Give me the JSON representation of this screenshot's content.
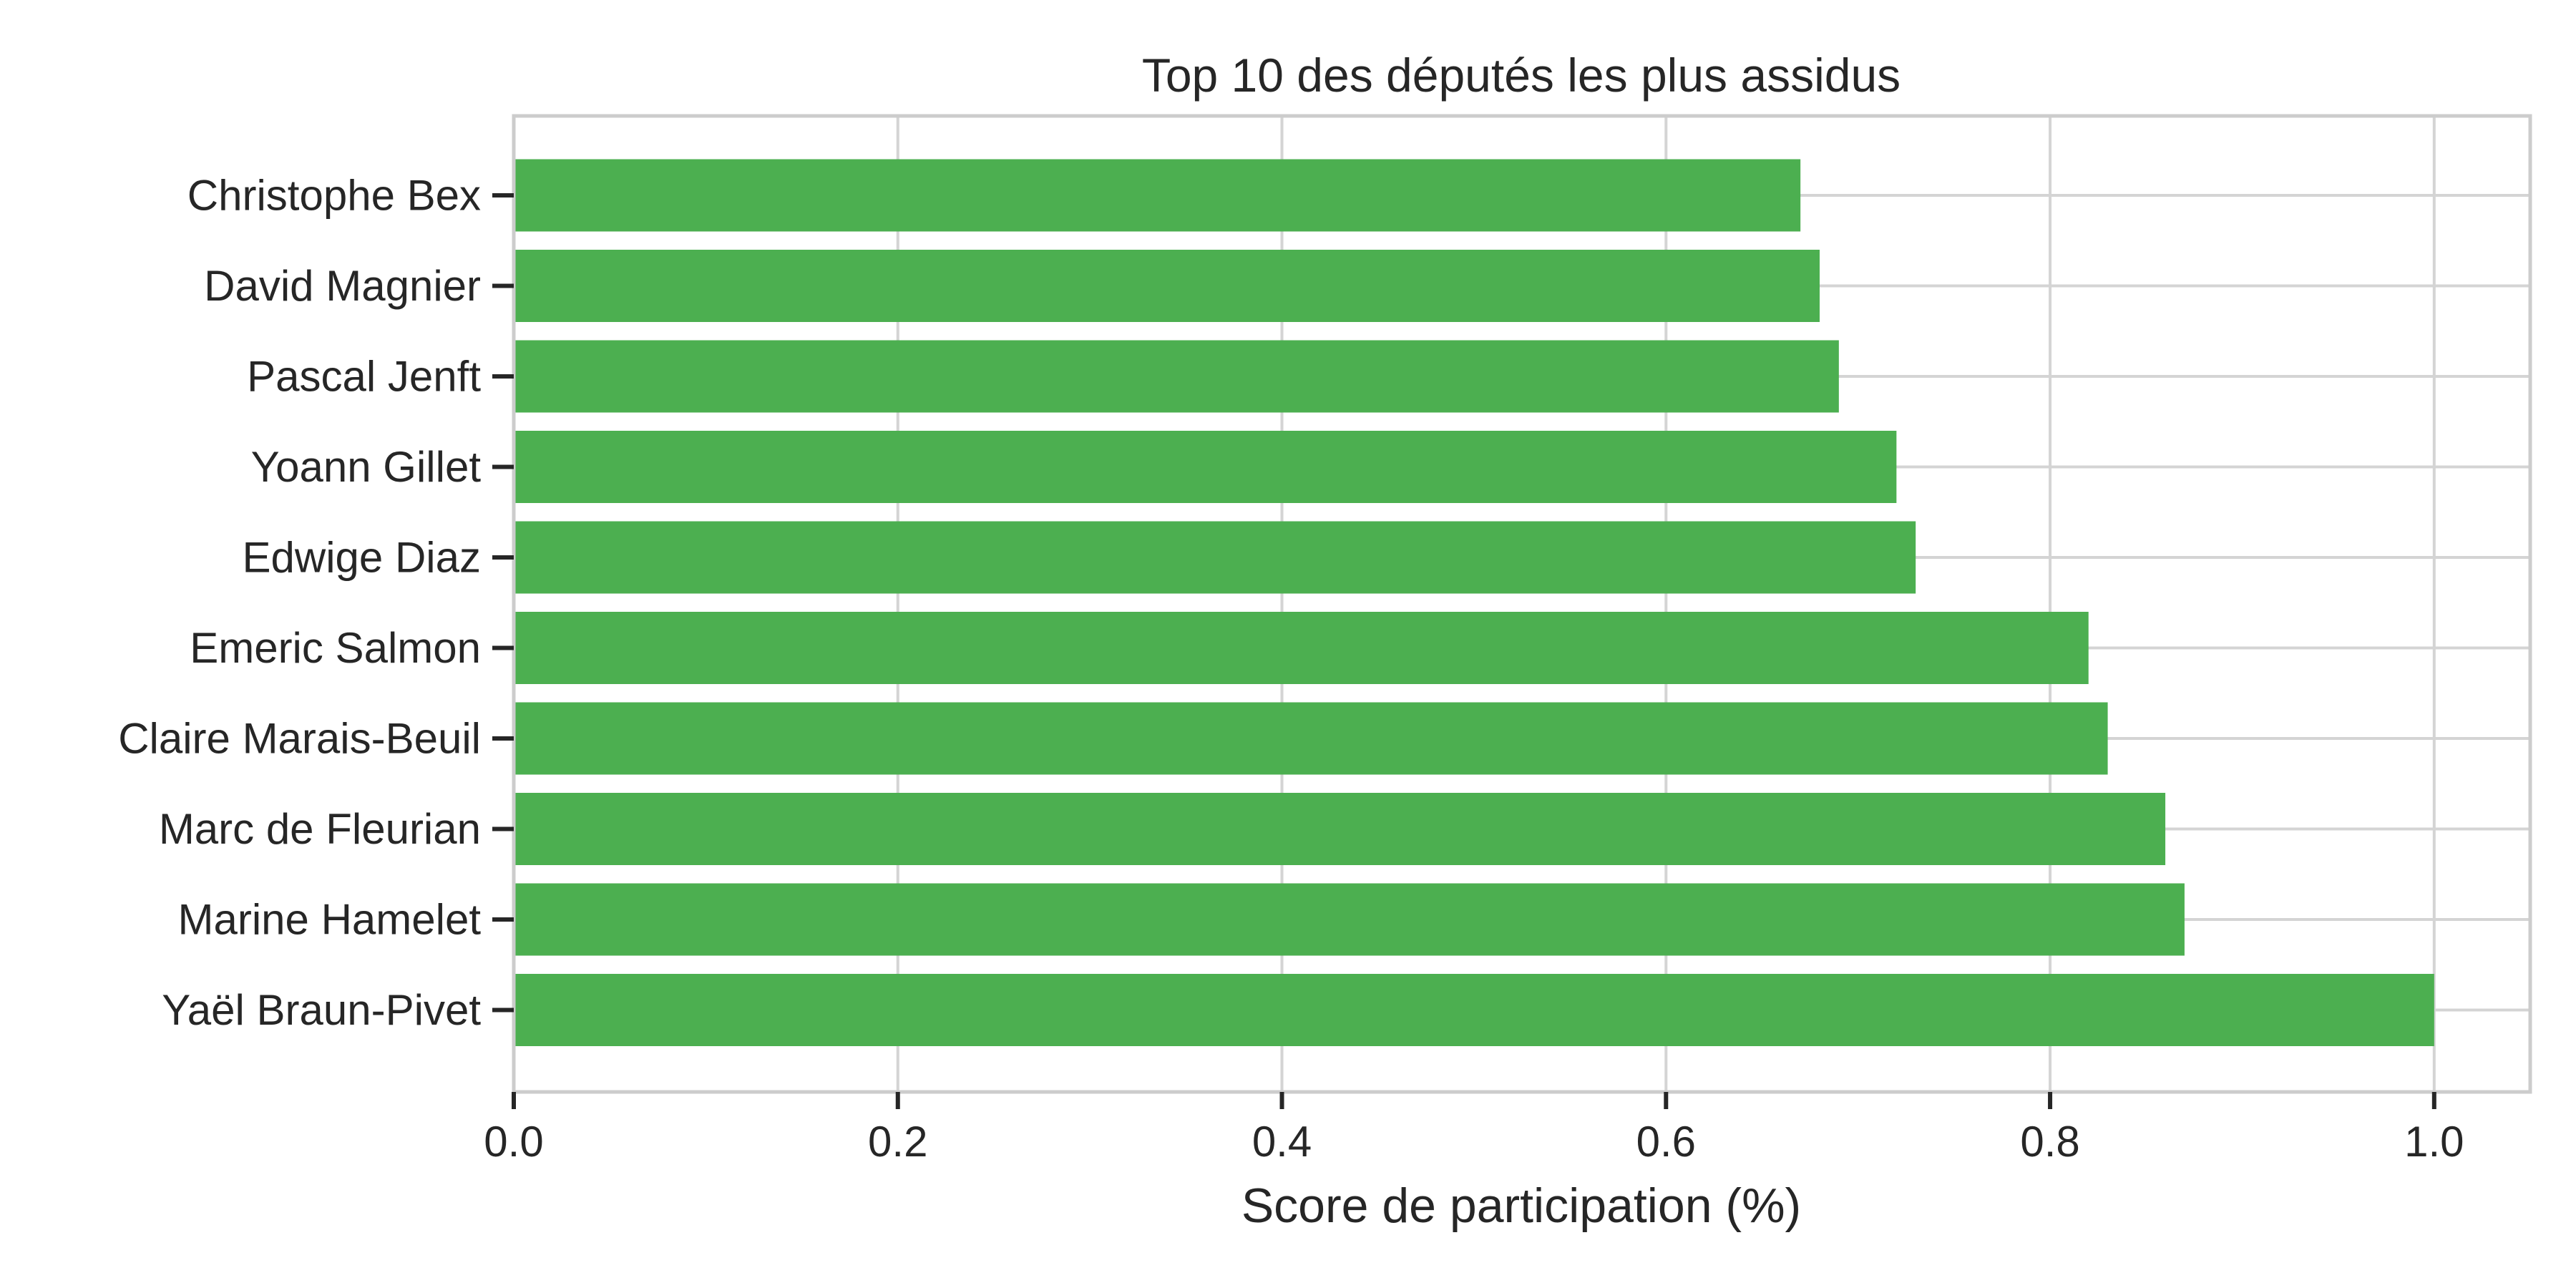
{
  "chart_data": {
    "type": "bar",
    "orientation": "horizontal",
    "title": "Top 10 des députés les plus assidus",
    "xlabel": "Score de participation (%)",
    "ylabel": "",
    "categories": [
      "Christophe Bex",
      "David Magnier",
      "Pascal Jenft",
      "Yoann Gillet",
      "Edwige Diaz",
      "Emeric Salmon",
      "Claire Marais-Beuil",
      "Marc de Fleurian",
      "Marine Hamelet",
      "Yaël Braun-Pivet"
    ],
    "values": [
      0.67,
      0.68,
      0.69,
      0.72,
      0.73,
      0.82,
      0.83,
      0.86,
      0.87,
      1.0
    ],
    "xlim": [
      0,
      1.05
    ],
    "xticks": [
      "0.0",
      "0.2",
      "0.4",
      "0.6",
      "0.8",
      "1.0"
    ],
    "xtick_values": [
      0,
      0.2,
      0.4,
      0.6,
      0.8,
      1.0
    ],
    "grid": true,
    "legend": "none",
    "bar_color": "#4caf50",
    "grid_color": "#d4d4d4",
    "spine_color": "#cccccc"
  }
}
